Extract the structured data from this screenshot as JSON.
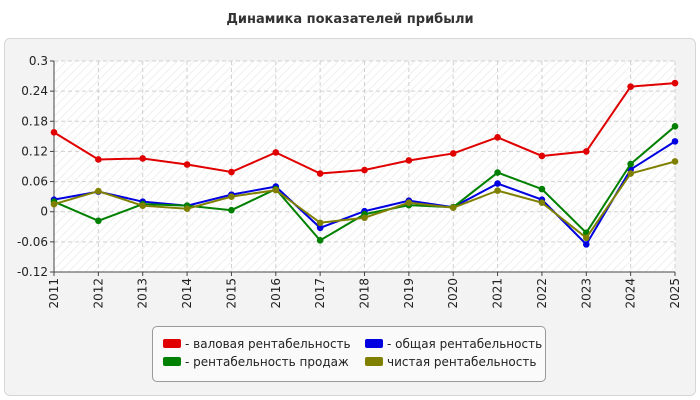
{
  "chart_data": {
    "type": "line",
    "title": "Динамика показателей прибыли",
    "xlabel": "",
    "ylabel": "",
    "x": [
      "2011",
      "2012",
      "2013",
      "2014",
      "2015",
      "2016",
      "2017",
      "2018",
      "2019",
      "2020",
      "2021",
      "2022",
      "2023",
      "2024",
      "2025"
    ],
    "ylim": [
      -0.12,
      0.3
    ],
    "yticks": [
      "0.3",
      "0.24",
      "0.18",
      "0.12",
      "0.06",
      "0",
      "-0.06",
      "-0.12"
    ],
    "grid": true,
    "legend_position": "bottom-center",
    "series": [
      {
        "name": "- валовая рентабельность",
        "color": "#e00000",
        "values": [
          0.158,
          0.104,
          0.106,
          0.094,
          0.079,
          0.118,
          0.076,
          0.083,
          0.102,
          0.116,
          0.148,
          0.111,
          0.12,
          0.249,
          0.256
        ]
      },
      {
        "name": "- общая рентабельность",
        "color": "#0000e0",
        "values": [
          0.024,
          0.04,
          0.02,
          0.012,
          0.034,
          0.05,
          -0.032,
          0.001,
          0.022,
          0.009,
          0.056,
          0.024,
          -0.065,
          0.084,
          0.14
        ]
      },
      {
        "name": "- рентабельность продаж",
        "color": "#008000",
        "values": [
          0.02,
          -0.018,
          0.015,
          0.012,
          0.003,
          0.045,
          -0.057,
          -0.005,
          0.013,
          0.009,
          0.078,
          0.045,
          -0.042,
          0.095,
          0.17
        ]
      },
      {
        "name": "чистая рентабельность",
        "color": "#808000",
        "values": [
          0.015,
          0.041,
          0.012,
          0.006,
          0.03,
          0.043,
          -0.022,
          -0.012,
          0.018,
          0.008,
          0.042,
          0.018,
          -0.052,
          0.076,
          0.1
        ]
      }
    ]
  }
}
